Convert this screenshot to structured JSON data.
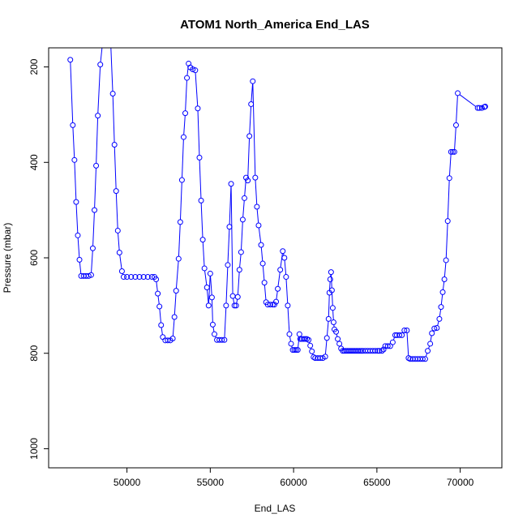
{
  "chart_data": {
    "type": "line",
    "title": "ATOM1 North_America End_LAS",
    "xlabel": "End_LAS",
    "ylabel": "Pressure (mbar)",
    "xlim": [
      45300,
      72500
    ],
    "ylim": [
      1040,
      160
    ],
    "y_reversed": true,
    "x_ticks": [
      50000,
      55000,
      60000,
      65000,
      70000
    ],
    "y_ticks": [
      200,
      400,
      600,
      800,
      1000
    ],
    "grid": false,
    "series": [
      {
        "color": "#0000ff",
        "marker": "open-circle",
        "points": [
          [
            46600,
            185
          ],
          [
            46750,
            322
          ],
          [
            46850,
            395
          ],
          [
            46950,
            483
          ],
          [
            47050,
            553
          ],
          [
            47150,
            604
          ],
          [
            47250,
            638
          ],
          [
            47400,
            638
          ],
          [
            47550,
            638
          ],
          [
            47700,
            638
          ],
          [
            47850,
            636
          ],
          [
            47950,
            580
          ],
          [
            48050,
            500
          ],
          [
            48150,
            407
          ],
          [
            48250,
            302
          ],
          [
            48400,
            195
          ],
          [
            48600,
            128
          ],
          [
            49000,
            128
          ],
          [
            49150,
            256
          ],
          [
            49250,
            363
          ],
          [
            49350,
            460
          ],
          [
            49450,
            543
          ],
          [
            49550,
            589
          ],
          [
            49700,
            628
          ],
          [
            49800,
            640
          ],
          [
            50000,
            640
          ],
          [
            50250,
            640
          ],
          [
            50500,
            640
          ],
          [
            50750,
            640
          ],
          [
            51000,
            640
          ],
          [
            51250,
            640
          ],
          [
            51500,
            640
          ],
          [
            51650,
            640
          ],
          [
            51750,
            645
          ],
          [
            51850,
            675
          ],
          [
            51950,
            702
          ],
          [
            52050,
            741
          ],
          [
            52150,
            766
          ],
          [
            52300,
            773
          ],
          [
            52450,
            773
          ],
          [
            52600,
            773
          ],
          [
            52750,
            769
          ],
          [
            52850,
            724
          ],
          [
            52950,
            669
          ],
          [
            53100,
            602
          ],
          [
            53200,
            525
          ],
          [
            53300,
            437
          ],
          [
            53400,
            347
          ],
          [
            53500,
            297
          ],
          [
            53600,
            223
          ],
          [
            53700,
            193
          ],
          [
            53800,
            201
          ],
          [
            53950,
            205
          ],
          [
            54100,
            207
          ],
          [
            54250,
            287
          ],
          [
            54350,
            390
          ],
          [
            54450,
            480
          ],
          [
            54550,
            562
          ],
          [
            54650,
            622
          ],
          [
            54800,
            662
          ],
          [
            54900,
            700
          ],
          [
            55000,
            633
          ],
          [
            55100,
            683
          ],
          [
            55150,
            740
          ],
          [
            55250,
            760
          ],
          [
            55400,
            772
          ],
          [
            55550,
            772
          ],
          [
            55700,
            772
          ],
          [
            55850,
            772
          ],
          [
            55950,
            700
          ],
          [
            56050,
            615
          ],
          [
            56150,
            535
          ],
          [
            56250,
            445
          ],
          [
            56350,
            680
          ],
          [
            56450,
            700
          ],
          [
            56550,
            700
          ],
          [
            56650,
            682
          ],
          [
            56750,
            625
          ],
          [
            56850,
            588
          ],
          [
            56950,
            520
          ],
          [
            57050,
            475
          ],
          [
            57150,
            432
          ],
          [
            57250,
            438
          ],
          [
            57350,
            345
          ],
          [
            57450,
            278
          ],
          [
            57550,
            230
          ],
          [
            57700,
            432
          ],
          [
            57800,
            493
          ],
          [
            57900,
            532
          ],
          [
            58050,
            573
          ],
          [
            58150,
            612
          ],
          [
            58250,
            652
          ],
          [
            58350,
            693
          ],
          [
            58450,
            698
          ],
          [
            58600,
            698
          ],
          [
            58750,
            698
          ],
          [
            58850,
            698
          ],
          [
            58950,
            692
          ],
          [
            59050,
            665
          ],
          [
            59200,
            625
          ],
          [
            59350,
            586
          ],
          [
            59450,
            600
          ],
          [
            59550,
            640
          ],
          [
            59650,
            700
          ],
          [
            59750,
            760
          ],
          [
            59850,
            780
          ],
          [
            59950,
            793
          ],
          [
            60050,
            793
          ],
          [
            60150,
            793
          ],
          [
            60250,
            793
          ],
          [
            60350,
            760
          ],
          [
            60400,
            770
          ],
          [
            60500,
            770
          ],
          [
            60600,
            770
          ],
          [
            60700,
            770
          ],
          [
            60800,
            770
          ],
          [
            60900,
            772
          ],
          [
            61000,
            784
          ],
          [
            61100,
            796
          ],
          [
            61200,
            808
          ],
          [
            61300,
            810
          ],
          [
            61450,
            810
          ],
          [
            61600,
            810
          ],
          [
            61750,
            810
          ],
          [
            61900,
            807
          ],
          [
            62000,
            768
          ],
          [
            62100,
            728
          ],
          [
            62150,
            673
          ],
          [
            62200,
            645
          ],
          [
            62250,
            630
          ],
          [
            62300,
            668
          ],
          [
            62350,
            705
          ],
          [
            62400,
            735
          ],
          [
            62450,
            750
          ],
          [
            62550,
            755
          ],
          [
            62650,
            770
          ],
          [
            62750,
            780
          ],
          [
            62850,
            790
          ],
          [
            62950,
            795
          ],
          [
            63050,
            795
          ],
          [
            63150,
            795
          ],
          [
            63250,
            795
          ],
          [
            63350,
            795
          ],
          [
            63450,
            795
          ],
          [
            63550,
            795
          ],
          [
            63650,
            795
          ],
          [
            63750,
            795
          ],
          [
            63850,
            795
          ],
          [
            63950,
            795
          ],
          [
            64050,
            795
          ],
          [
            64150,
            795
          ],
          [
            64300,
            795
          ],
          [
            64450,
            795
          ],
          [
            64600,
            795
          ],
          [
            64750,
            795
          ],
          [
            64900,
            795
          ],
          [
            65050,
            795
          ],
          [
            65150,
            795
          ],
          [
            65300,
            795
          ],
          [
            65400,
            792
          ],
          [
            65500,
            785
          ],
          [
            65650,
            785
          ],
          [
            65800,
            785
          ],
          [
            65950,
            777
          ],
          [
            66100,
            762
          ],
          [
            66200,
            762
          ],
          [
            66350,
            762
          ],
          [
            66500,
            762
          ],
          [
            66650,
            752
          ],
          [
            66800,
            752
          ],
          [
            66900,
            810
          ],
          [
            67000,
            812
          ],
          [
            67150,
            812
          ],
          [
            67300,
            812
          ],
          [
            67450,
            812
          ],
          [
            67600,
            812
          ],
          [
            67750,
            812
          ],
          [
            67900,
            812
          ],
          [
            68050,
            795
          ],
          [
            68200,
            780
          ],
          [
            68300,
            758
          ],
          [
            68450,
            748
          ],
          [
            68600,
            747
          ],
          [
            68750,
            728
          ],
          [
            68850,
            703
          ],
          [
            68950,
            672
          ],
          [
            69050,
            645
          ],
          [
            69150,
            605
          ],
          [
            69250,
            523
          ],
          [
            69350,
            433
          ],
          [
            69450,
            378
          ],
          [
            69550,
            378
          ],
          [
            69650,
            378
          ],
          [
            69750,
            322
          ],
          [
            69850,
            255
          ],
          [
            71050,
            286
          ],
          [
            71150,
            286
          ],
          [
            71300,
            286
          ],
          [
            71450,
            284
          ],
          [
            71500,
            283
          ]
        ]
      }
    ]
  }
}
